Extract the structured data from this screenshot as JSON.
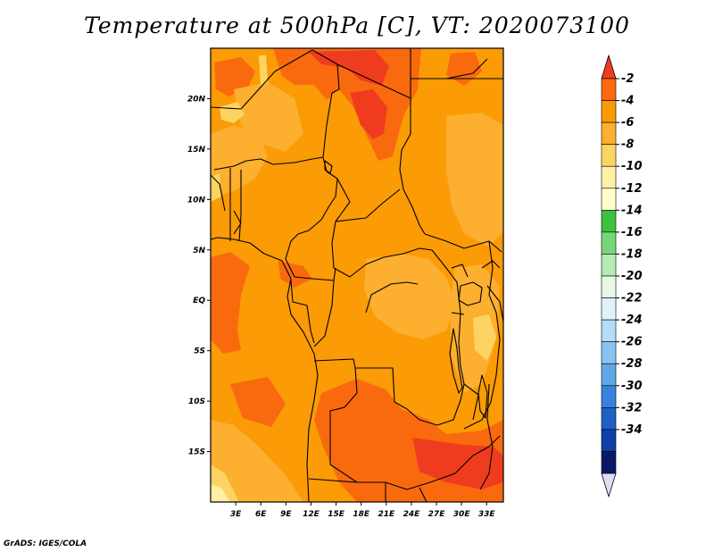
{
  "title": "Temperature at 500hPa [C], VT: 2020073100",
  "credit": "GrADS: IGES/COLA",
  "map": {
    "lat_labels": [
      "20N",
      "15N",
      "10N",
      "5N",
      "EQ",
      "5S",
      "10S",
      "15S"
    ],
    "lon_labels": [
      "3E",
      "6E",
      "9E",
      "12E",
      "15E",
      "18E",
      "21E",
      "24E",
      "27E",
      "30E",
      "33E"
    ],
    "lat_range": [
      -20,
      25
    ],
    "lon_range": [
      0,
      35
    ]
  },
  "colorbar": {
    "labels": [
      "-2",
      "-4",
      "-6",
      "-8",
      "-10",
      "-12",
      "-14",
      "-16",
      "-18",
      "-20",
      "-22",
      "-24",
      "-26",
      "-28",
      "-30",
      "-32",
      "-34"
    ],
    "colors": [
      "#f03c1e",
      "#f96a0f",
      "#fb9b06",
      "#fdaf2f",
      "#fdd463",
      "#fef0a6",
      "#ffffcc",
      "#3ec13e",
      "#78d678",
      "#b5eab3",
      "#e7f8e5",
      "#e2f2fc",
      "#b3dcf7",
      "#8ac3f0",
      "#5ea8ea",
      "#3583dd",
      "#1e60c6",
      "#0e40a8",
      "#081a66",
      "#e2dcf2"
    ]
  },
  "field_colors": {
    "base": "#fb9b06",
    "warm": "#f96a0f",
    "hot": "#f03c1e",
    "cool": "#fdaf2f",
    "cold": "#fdd463",
    "coldest": "#fef0a6"
  }
}
